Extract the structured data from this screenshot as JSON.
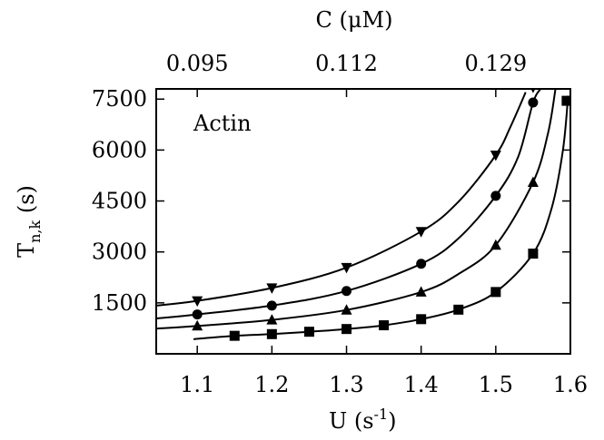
{
  "chart_data": {
    "type": "scatter",
    "annotation": "Actin",
    "x_axis": {
      "label_base": "U (s",
      "label_sup": "-1",
      "label_close": ")",
      "ticks": [
        1.1,
        1.2,
        1.3,
        1.4,
        1.5,
        1.6
      ],
      "tick_labels": [
        "1.1",
        "1.2",
        "1.3",
        "1.4",
        "1.5",
        "1.6"
      ],
      "range": [
        1.045,
        1.6
      ]
    },
    "x2_axis": {
      "label": "C (μM)",
      "ticks_at_U": [
        1.1,
        1.3,
        1.5
      ],
      "tick_labels": [
        "0.095",
        "0.112",
        "0.129"
      ]
    },
    "y_axis": {
      "label_base": "T",
      "label_sub": "n,k",
      "label_rest": " (s)",
      "ticks": [
        1500,
        3000,
        4500,
        6000,
        7500
      ],
      "tick_labels": [
        "1500",
        "3000",
        "4500",
        "6000",
        "7500"
      ],
      "range": [
        0,
        7800
      ]
    },
    "series": [
      {
        "marker": "triangle-down",
        "points": [
          [
            1.1,
            1560
          ],
          [
            1.2,
            1940
          ],
          [
            1.3,
            2540
          ],
          [
            1.4,
            3600
          ],
          [
            1.5,
            5850
          ],
          [
            1.55,
            7850
          ]
        ],
        "curve": [
          [
            1.045,
            1420
          ],
          [
            1.1,
            1560
          ],
          [
            1.2,
            1940
          ],
          [
            1.3,
            2540
          ],
          [
            1.4,
            3600
          ],
          [
            1.45,
            4480
          ],
          [
            1.5,
            5850
          ],
          [
            1.52,
            6700
          ],
          [
            1.54,
            7700
          ]
        ]
      },
      {
        "marker": "circle",
        "points": [
          [
            1.1,
            1160
          ],
          [
            1.2,
            1420
          ],
          [
            1.3,
            1850
          ],
          [
            1.4,
            2650
          ],
          [
            1.5,
            4650
          ],
          [
            1.55,
            7400
          ]
        ],
        "curve": [
          [
            1.045,
            1040
          ],
          [
            1.1,
            1160
          ],
          [
            1.2,
            1420
          ],
          [
            1.3,
            1850
          ],
          [
            1.4,
            2650
          ],
          [
            1.45,
            3400
          ],
          [
            1.5,
            4650
          ],
          [
            1.53,
            5800
          ],
          [
            1.55,
            7400
          ],
          [
            1.56,
            7800
          ]
        ]
      },
      {
        "marker": "triangle-up",
        "points": [
          [
            1.1,
            820
          ],
          [
            1.2,
            1000
          ],
          [
            1.3,
            1290
          ],
          [
            1.4,
            1820
          ],
          [
            1.5,
            3200
          ],
          [
            1.55,
            5050
          ]
        ],
        "curve": [
          [
            1.045,
            740
          ],
          [
            1.1,
            820
          ],
          [
            1.2,
            1000
          ],
          [
            1.3,
            1290
          ],
          [
            1.4,
            1820
          ],
          [
            1.45,
            2350
          ],
          [
            1.5,
            3200
          ],
          [
            1.55,
            5050
          ],
          [
            1.57,
            6500
          ],
          [
            1.58,
            7800
          ]
        ]
      },
      {
        "marker": "square",
        "points": [
          [
            1.15,
            530
          ],
          [
            1.2,
            580
          ],
          [
            1.25,
            650
          ],
          [
            1.3,
            730
          ],
          [
            1.35,
            840
          ],
          [
            1.4,
            1020
          ],
          [
            1.45,
            1300
          ],
          [
            1.5,
            1820
          ],
          [
            1.55,
            2950
          ],
          [
            1.595,
            7450
          ]
        ],
        "curve": [
          [
            1.095,
            430
          ],
          [
            1.15,
            530
          ],
          [
            1.2,
            580
          ],
          [
            1.25,
            650
          ],
          [
            1.3,
            730
          ],
          [
            1.35,
            840
          ],
          [
            1.4,
            1020
          ],
          [
            1.45,
            1300
          ],
          [
            1.5,
            1820
          ],
          [
            1.55,
            2950
          ],
          [
            1.575,
            4300
          ],
          [
            1.59,
            6000
          ],
          [
            1.597,
            7600
          ]
        ]
      }
    ]
  }
}
